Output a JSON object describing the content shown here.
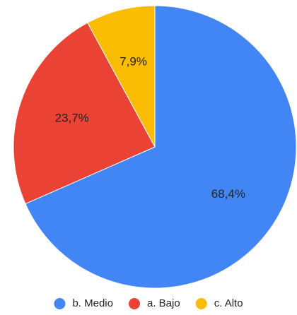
{
  "chart_data": {
    "type": "pie",
    "start_angle_deg": 0,
    "direction": "clockwise",
    "legend_position": "bottom",
    "slices": [
      {
        "label": "b. Medio",
        "value": 68.4,
        "display": "68,4%",
        "color": "#4285f4"
      },
      {
        "label": "a. Bajo",
        "value": 23.7,
        "display": "23,7%",
        "color": "#ea4335"
      },
      {
        "label": "c. Alto",
        "value": 7.9,
        "display": "7,9%",
        "color": "#fbbc04"
      }
    ]
  }
}
